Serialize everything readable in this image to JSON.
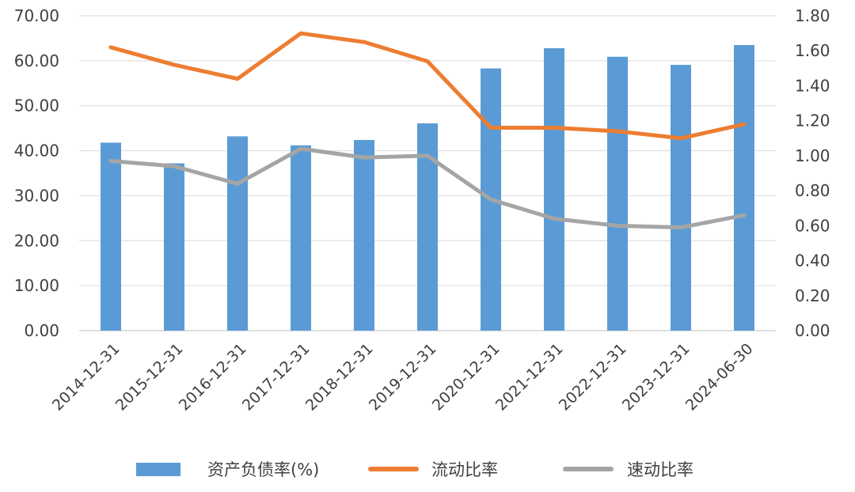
{
  "chart_data": {
    "type": "bar+line",
    "categories": [
      "2014-12-31",
      "2015-12-31",
      "2016-12-31",
      "2017-12-31",
      "2018-12-31",
      "2019-12-31",
      "2020-12-31",
      "2021-12-31",
      "2022-12-31",
      "2023-12-31",
      "2024-06-30"
    ],
    "series": [
      {
        "name": "资产负债率(%)",
        "type": "bar",
        "axis": "left",
        "color": "#5b9bd5",
        "values": [
          41.8,
          37.2,
          43.2,
          41.2,
          42.4,
          46.1,
          58.3,
          62.8,
          60.9,
          59.1,
          63.5
        ]
      },
      {
        "name": "流动比率",
        "type": "line",
        "axis": "right",
        "color": "#ed7d31",
        "values": [
          1.62,
          1.52,
          1.44,
          1.7,
          1.65,
          1.54,
          1.16,
          1.16,
          1.14,
          1.1,
          1.18
        ]
      },
      {
        "name": "速动比率",
        "type": "line",
        "axis": "right",
        "color": "#a5a5a5",
        "values": [
          0.97,
          0.94,
          0.84,
          1.04,
          0.99,
          1.0,
          0.75,
          0.64,
          0.6,
          0.59,
          0.66
        ]
      }
    ],
    "y_left": {
      "min": 0,
      "max": 70,
      "step": 10,
      "decimals": 2
    },
    "y_right": {
      "min": 0,
      "max": 1.8,
      "step": 0.2,
      "decimals": 2
    },
    "grid": true,
    "legend": "bottom",
    "title": "",
    "xlabel": "",
    "ylabel": ""
  }
}
